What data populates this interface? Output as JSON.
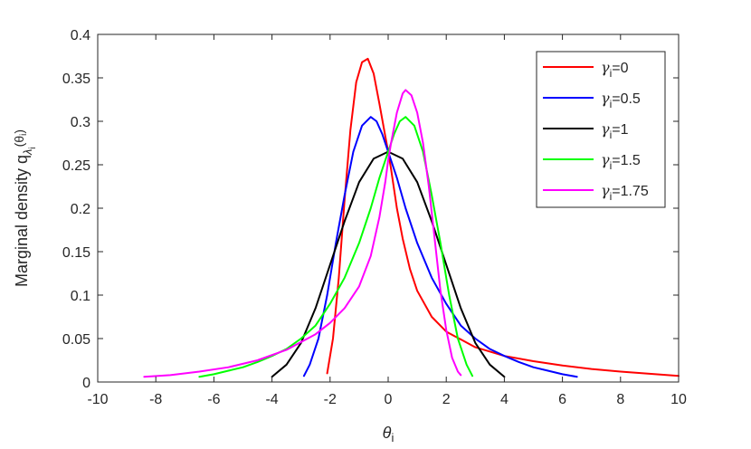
{
  "chart_data": {
    "type": "line",
    "title": "",
    "xlabel": {
      "base": "θ",
      "sub": "i"
    },
    "ylabel": {
      "text": "Marginal density q",
      "sub": "λ",
      "subsub": "i",
      "arg": "(θ",
      "arg_sub": "i",
      "close": ")"
    },
    "xlim": [
      -10,
      10
    ],
    "ylim": [
      0,
      0.4
    ],
    "xticks": [
      "-10",
      "-8",
      "-6",
      "-4",
      "-2",
      "0",
      "2",
      "4",
      "6",
      "8",
      "10"
    ],
    "yticks": [
      "0",
      "0.05",
      "0.1",
      "0.15",
      "0.2",
      "0.25",
      "0.3",
      "0.35",
      "0.4"
    ],
    "grid": false,
    "legend_position": "top-right",
    "series": [
      {
        "name": {
          "prefix": "γ",
          "sub": "i",
          "value": "=0"
        },
        "color": "#ff0000",
        "points": [
          [
            -2.1,
            0.01
          ],
          [
            -1.9,
            0.05
          ],
          [
            -1.7,
            0.12
          ],
          [
            -1.5,
            0.21
          ],
          [
            -1.3,
            0.29
          ],
          [
            -1.1,
            0.345
          ],
          [
            -0.9,
            0.368
          ],
          [
            -0.7,
            0.372
          ],
          [
            -0.5,
            0.355
          ],
          [
            -0.3,
            0.32
          ],
          [
            -0.1,
            0.283
          ],
          [
            0.0,
            0.265
          ],
          [
            0.1,
            0.245
          ],
          [
            0.3,
            0.2
          ],
          [
            0.5,
            0.165
          ],
          [
            0.75,
            0.13
          ],
          [
            1.0,
            0.105
          ],
          [
            1.5,
            0.075
          ],
          [
            2.0,
            0.058
          ],
          [
            3.0,
            0.04
          ],
          [
            4.0,
            0.03
          ],
          [
            5.0,
            0.024
          ],
          [
            6.0,
            0.019
          ],
          [
            7.0,
            0.015
          ],
          [
            8.0,
            0.012
          ],
          [
            9.0,
            0.0095
          ],
          [
            10.0,
            0.007
          ]
        ]
      },
      {
        "name": {
          "prefix": "γ",
          "sub": "i",
          "value": "=0.5"
        },
        "color": "#0000ff",
        "points": [
          [
            -2.9,
            0.007
          ],
          [
            -2.7,
            0.02
          ],
          [
            -2.4,
            0.05
          ],
          [
            -2.1,
            0.1
          ],
          [
            -1.8,
            0.16
          ],
          [
            -1.5,
            0.215
          ],
          [
            -1.2,
            0.265
          ],
          [
            -0.9,
            0.295
          ],
          [
            -0.6,
            0.305
          ],
          [
            -0.4,
            0.3
          ],
          [
            -0.2,
            0.285
          ],
          [
            0.0,
            0.265
          ],
          [
            0.3,
            0.235
          ],
          [
            0.6,
            0.2
          ],
          [
            1.0,
            0.16
          ],
          [
            1.5,
            0.12
          ],
          [
            2.0,
            0.09
          ],
          [
            2.5,
            0.065
          ],
          [
            3.0,
            0.05
          ],
          [
            3.5,
            0.038
          ],
          [
            4.0,
            0.03
          ],
          [
            4.5,
            0.023
          ],
          [
            5.0,
            0.017
          ],
          [
            5.5,
            0.013
          ],
          [
            6.0,
            0.009
          ],
          [
            6.5,
            0.006
          ]
        ]
      },
      {
        "name": {
          "prefix": "γ",
          "sub": "i",
          "value": "=1"
        },
        "color": "#000000",
        "points": [
          [
            -4.0,
            0.006
          ],
          [
            -3.5,
            0.02
          ],
          [
            -3.0,
            0.045
          ],
          [
            -2.5,
            0.085
          ],
          [
            -2.0,
            0.135
          ],
          [
            -1.5,
            0.185
          ],
          [
            -1.0,
            0.23
          ],
          [
            -0.5,
            0.257
          ],
          [
            0.0,
            0.265
          ],
          [
            0.5,
            0.257
          ],
          [
            1.0,
            0.23
          ],
          [
            1.5,
            0.185
          ],
          [
            2.0,
            0.135
          ],
          [
            2.5,
            0.085
          ],
          [
            3.0,
            0.045
          ],
          [
            3.5,
            0.02
          ],
          [
            4.0,
            0.006
          ]
        ]
      },
      {
        "name": {
          "prefix": "γ",
          "sub": "i",
          "value": "=1.5"
        },
        "color": "#00ff00",
        "points": [
          [
            -6.5,
            0.006
          ],
          [
            -6.0,
            0.009
          ],
          [
            -5.5,
            0.013
          ],
          [
            -5.0,
            0.017
          ],
          [
            -4.5,
            0.023
          ],
          [
            -4.0,
            0.03
          ],
          [
            -3.5,
            0.038
          ],
          [
            -3.0,
            0.05
          ],
          [
            -2.5,
            0.065
          ],
          [
            -2.0,
            0.09
          ],
          [
            -1.5,
            0.12
          ],
          [
            -1.0,
            0.16
          ],
          [
            -0.6,
            0.2
          ],
          [
            -0.3,
            0.235
          ],
          [
            0.0,
            0.265
          ],
          [
            0.2,
            0.285
          ],
          [
            0.4,
            0.3
          ],
          [
            0.6,
            0.305
          ],
          [
            0.9,
            0.295
          ],
          [
            1.2,
            0.265
          ],
          [
            1.5,
            0.215
          ],
          [
            1.8,
            0.16
          ],
          [
            2.1,
            0.1
          ],
          [
            2.4,
            0.05
          ],
          [
            2.7,
            0.02
          ],
          [
            2.9,
            0.007
          ]
        ]
      },
      {
        "name": {
          "prefix": "γ",
          "sub": "i",
          "value": "=1.75"
        },
        "color": "#ff00ff",
        "points": [
          [
            -8.4,
            0.006
          ],
          [
            -7.5,
            0.008
          ],
          [
            -6.5,
            0.012
          ],
          [
            -5.5,
            0.017
          ],
          [
            -4.5,
            0.025
          ],
          [
            -3.5,
            0.037
          ],
          [
            -2.5,
            0.055
          ],
          [
            -2.0,
            0.068
          ],
          [
            -1.5,
            0.085
          ],
          [
            -1.0,
            0.11
          ],
          [
            -0.6,
            0.145
          ],
          [
            -0.3,
            0.19
          ],
          [
            -0.1,
            0.23
          ],
          [
            0.0,
            0.255
          ],
          [
            0.1,
            0.275
          ],
          [
            0.3,
            0.31
          ],
          [
            0.5,
            0.332
          ],
          [
            0.6,
            0.336
          ],
          [
            0.8,
            0.33
          ],
          [
            1.0,
            0.31
          ],
          [
            1.2,
            0.275
          ],
          [
            1.4,
            0.225
          ],
          [
            1.6,
            0.165
          ],
          [
            1.8,
            0.105
          ],
          [
            2.0,
            0.06
          ],
          [
            2.2,
            0.028
          ],
          [
            2.4,
            0.012
          ],
          [
            2.5,
            0.008
          ]
        ]
      }
    ]
  }
}
